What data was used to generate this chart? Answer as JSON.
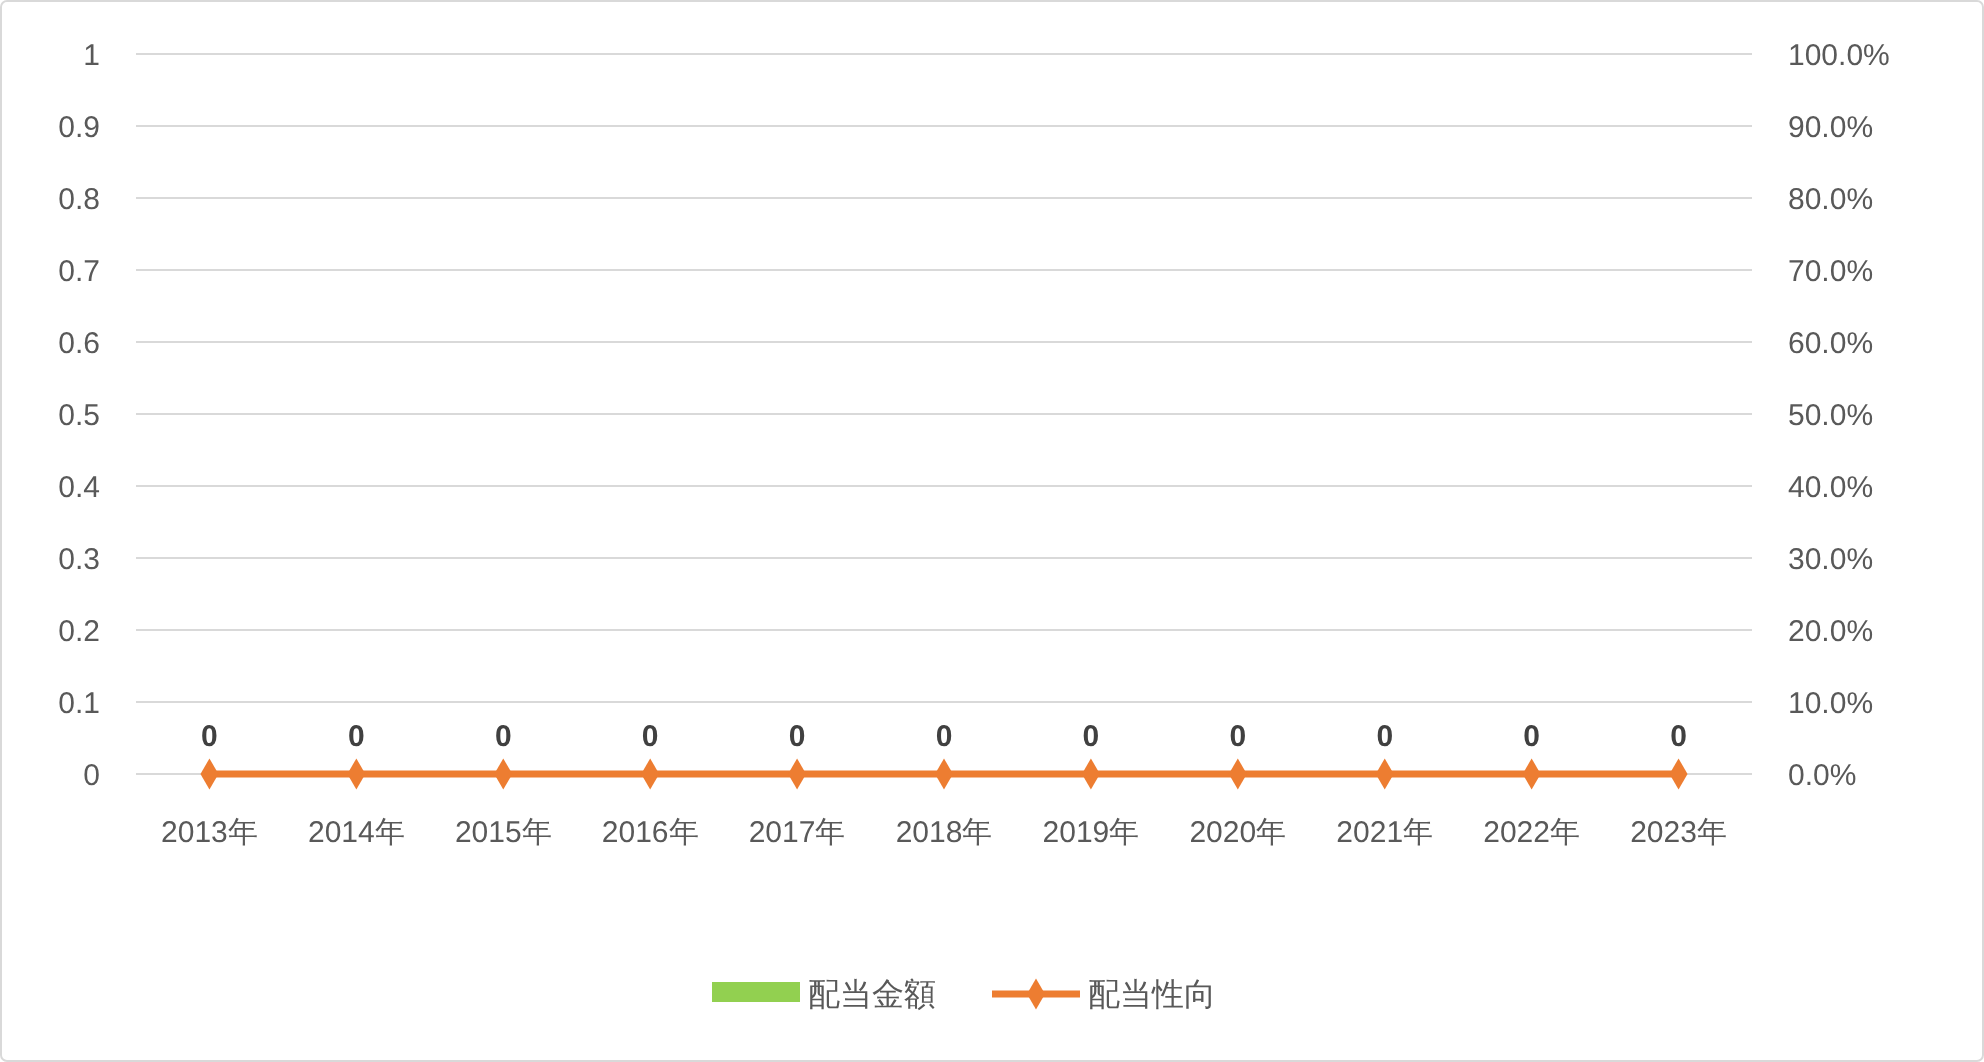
{
  "chart_data": {
    "type": "bar",
    "categories": [
      "2013年",
      "2014年",
      "2015年",
      "2016年",
      "2017年",
      "2018年",
      "2019年",
      "2020年",
      "2021年",
      "2022年",
      "2023年"
    ],
    "series": [
      {
        "name": "配当金額",
        "color": "#92d050",
        "values": [
          0,
          0,
          0,
          0,
          0,
          0,
          0,
          0,
          0,
          0,
          0
        ],
        "value_labels": [
          "0",
          "0",
          "0",
          "0",
          "0",
          "0",
          "0",
          "0",
          "0",
          "0",
          "0"
        ]
      },
      {
        "name": "配当性向",
        "type": "line",
        "axis": "y2",
        "color": "#ed7d31",
        "marker": "diamond",
        "values": [
          0,
          0,
          0,
          0,
          0,
          0,
          0,
          0,
          0,
          0,
          0
        ]
      }
    ],
    "ylim": [
      0,
      1
    ],
    "yticks": [
      0,
      0.1,
      0.2,
      0.3,
      0.4,
      0.5,
      0.6,
      0.7,
      0.8,
      0.9,
      1
    ],
    "y2lim": [
      0,
      100
    ],
    "y2ticks": [
      {
        "value": 0,
        "label": "0.0%"
      },
      {
        "value": 10,
        "label": "10.0%"
      },
      {
        "value": 20,
        "label": "20.0%"
      },
      {
        "value": 30,
        "label": "30.0%"
      },
      {
        "value": 40,
        "label": "40.0%"
      },
      {
        "value": 50,
        "label": "50.0%"
      },
      {
        "value": 60,
        "label": "60.0%"
      },
      {
        "value": 70,
        "label": "70.0%"
      },
      {
        "value": 80,
        "label": "80.0%"
      },
      {
        "value": 90,
        "label": "90.0%"
      },
      {
        "value": 100,
        "label": "100.0%"
      }
    ],
    "grid": "y",
    "legend": "bottom"
  }
}
